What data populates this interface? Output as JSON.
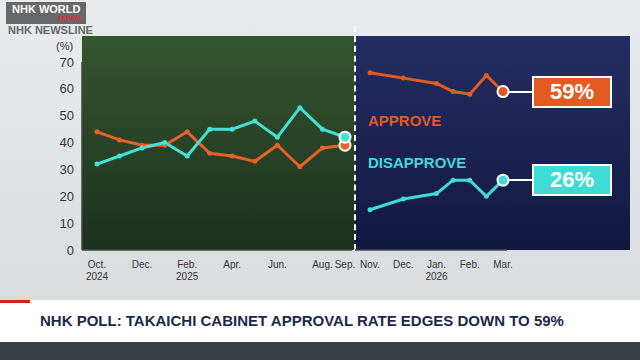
{
  "header": {
    "logo": "NHK WORLD",
    "logo_sub": "JAPAN",
    "program": "NHK NEWSLINE"
  },
  "headline": "NHK POLL: TAKAICHI CABINET APPROVAL RATE EDGES DOWN TO 59%",
  "chart_data": [
    {
      "type": "line",
      "y_label": "(%)",
      "categories": [
        "Oct. 2024",
        null,
        "Dec.",
        null,
        "Feb. 2025",
        null,
        "Apr.",
        null,
        "Jun.",
        null,
        "Aug.",
        "Sep."
      ],
      "ylim": [
        0,
        70
      ],
      "yticks": [
        0,
        10,
        20,
        30,
        40,
        50,
        60,
        70
      ],
      "grid": false,
      "marker": "circle",
      "series": [
        {
          "color": "#e8602a",
          "values": [
            44,
            41,
            39,
            39,
            44,
            36,
            35,
            33,
            39,
            31,
            38,
            39
          ]
        },
        {
          "color": "#45e0d6",
          "values": [
            32,
            35,
            38,
            40,
            35,
            45,
            45,
            48,
            42,
            53,
            45,
            42
          ]
        }
      ]
    },
    {
      "type": "line",
      "categories": [
        "Nov.",
        null,
        "Dec.",
        null,
        "Jan. 2026",
        null,
        "Feb.",
        null,
        "Mar."
      ],
      "ylim": [
        0,
        70
      ],
      "tick_labels": "x",
      "grid": false,
      "marker": "circle",
      "series": [
        {
          "name": "APPROVE",
          "color": "#e35b22",
          "values": [
            66,
            null,
            64,
            null,
            62,
            59,
            58,
            65,
            59
          ],
          "value_labels": [
            null,
            null,
            null,
            null,
            null,
            null,
            null,
            null,
            "59%"
          ]
        },
        {
          "name": "DISAPPROVE",
          "color": "#3fdcd6",
          "values": [
            15,
            null,
            19,
            null,
            21,
            26,
            26,
            20,
            26
          ],
          "value_labels": [
            null,
            null,
            null,
            null,
            null,
            null,
            null,
            null,
            "26%"
          ]
        }
      ]
    }
  ]
}
